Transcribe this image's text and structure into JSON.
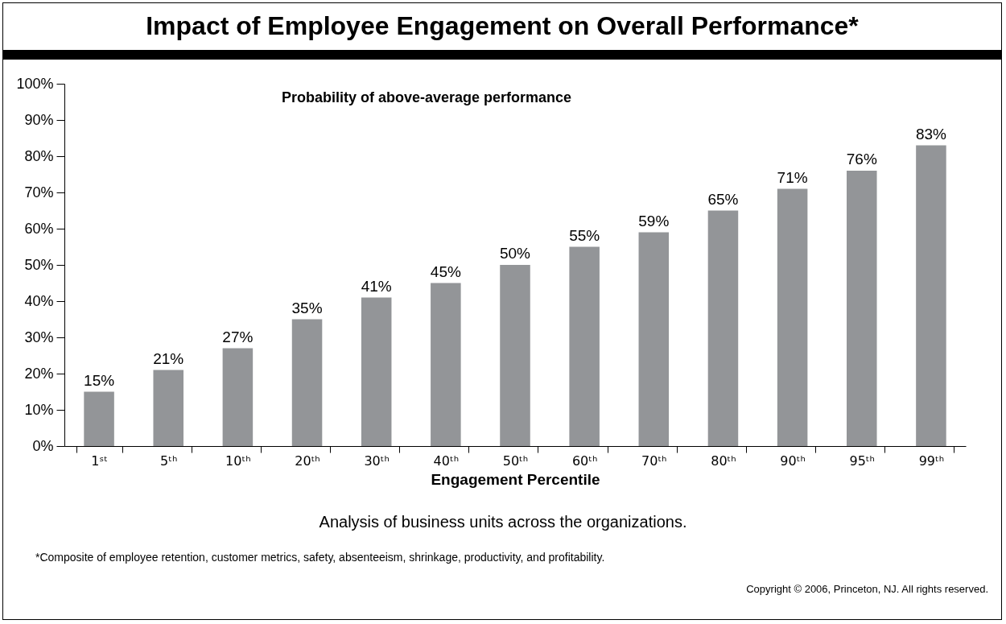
{
  "chart_data": {
    "type": "bar",
    "title": "Impact of Employee Engagement on Overall Performance*",
    "subtitle": "Probability of above-average performance",
    "xlabel": "Engagement Percentile",
    "categories": [
      "1ˢᵗ",
      "5ᵗʰ",
      "10ᵗʰ",
      "20ᵗʰ",
      "30ᵗʰ",
      "40ᵗʰ",
      "50ᵗʰ",
      "60ᵗʰ",
      "70ᵗʰ",
      "80ᵗʰ",
      "90ᵗʰ",
      "95ᵗʰ",
      "99ᵗʰ"
    ],
    "values": [
      15,
      21,
      27,
      35,
      41,
      45,
      50,
      55,
      59,
      65,
      71,
      76,
      83
    ],
    "value_labels": [
      "15%",
      "21%",
      "27%",
      "35%",
      "41%",
      "45%",
      "50%",
      "55%",
      "59%",
      "65%",
      "71%",
      "76%",
      "83%"
    ],
    "color": "#939598",
    "ylim": [
      0,
      100
    ],
    "yticks": [
      {
        "value": 0,
        "label": "0%"
      },
      {
        "value": 10,
        "label": "10%"
      },
      {
        "value": 20,
        "label": "20%"
      },
      {
        "value": 30,
        "label": "30%"
      },
      {
        "value": 40,
        "label": "40%"
      },
      {
        "value": 50,
        "label": "50%"
      },
      {
        "value": 60,
        "label": "60%"
      },
      {
        "value": 70,
        "label": "70%"
      },
      {
        "value": 80,
        "label": "80%"
      },
      {
        "value": 90,
        "label": "90%"
      },
      {
        "value": 100,
        "label": "100%"
      }
    ],
    "annotations": [
      "Analysis of business units across the organizations.",
      "*Composite of employee retention, customer metrics, safety, absenteeism, shrinkage, productivity, and profitability.",
      "Copyright © 2006, Princeton, NJ. All rights reserved."
    ]
  }
}
